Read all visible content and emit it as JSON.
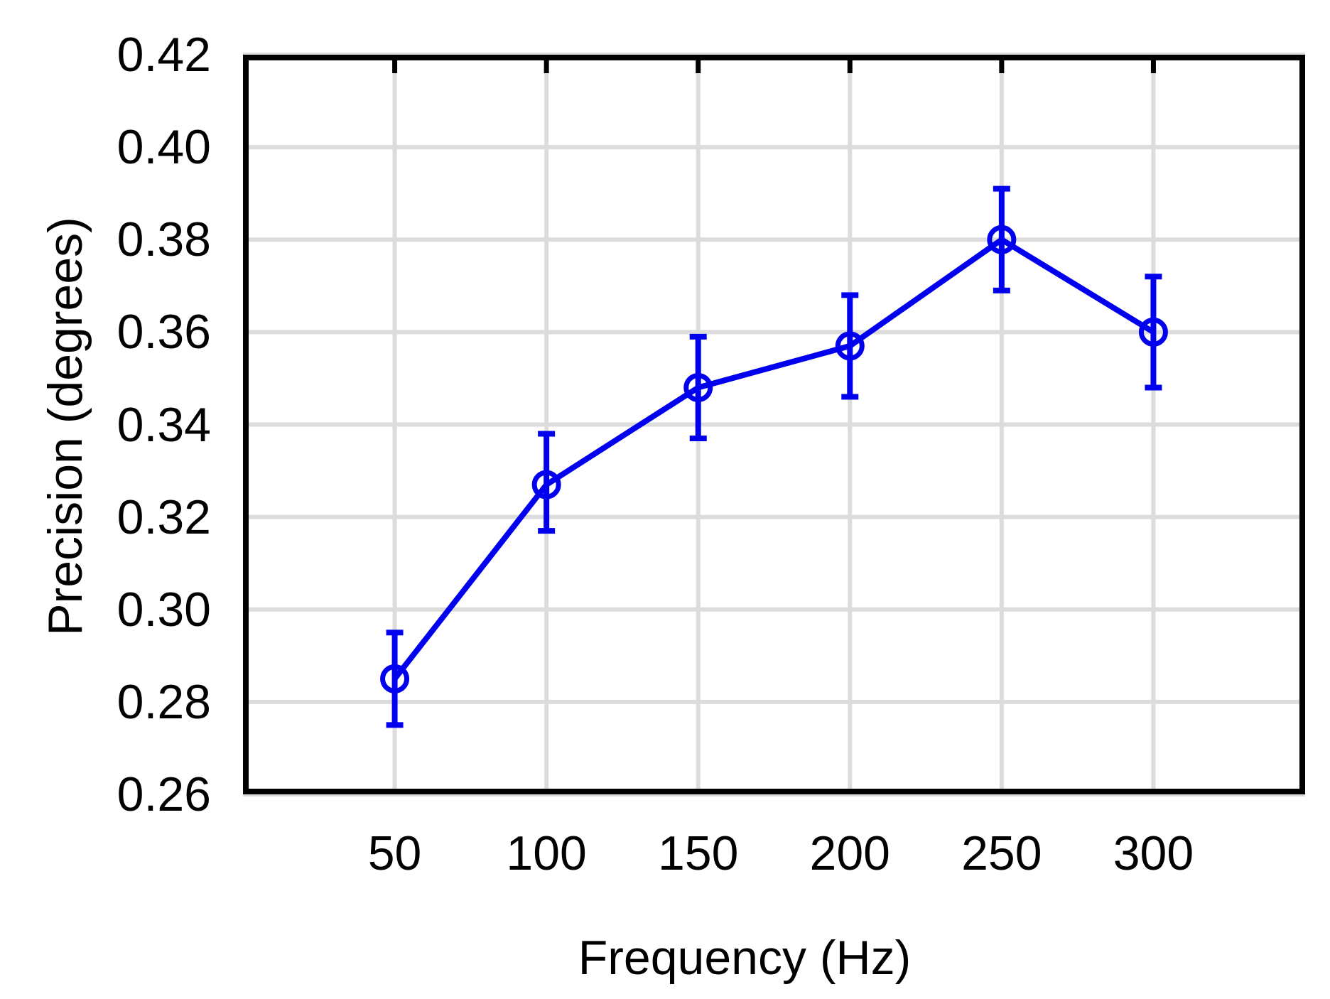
{
  "chart_data": {
    "type": "line",
    "title": "",
    "xlabel": "Frequency (Hz)",
    "ylabel": "Precision (degrees)",
    "x": [
      50,
      100,
      150,
      200,
      250,
      300
    ],
    "series": [
      {
        "name": "precision",
        "values": [
          0.285,
          0.327,
          0.348,
          0.357,
          0.38,
          0.36
        ],
        "error_upper": [
          0.01,
          0.011,
          0.011,
          0.011,
          0.011,
          0.012
        ],
        "error_lower": [
          0.01,
          0.01,
          0.011,
          0.011,
          0.011,
          0.012
        ]
      }
    ],
    "xlim": [
      0,
      350
    ],
    "ylim": [
      0.26,
      0.42
    ],
    "x_ticks": [
      50,
      100,
      150,
      200,
      250,
      300
    ],
    "x_tick_labels": [
      "50",
      "100",
      "150",
      "200",
      "250",
      "300"
    ],
    "y_ticks": [
      0.26,
      0.28,
      0.3,
      0.32,
      0.34,
      0.36,
      0.38,
      0.4,
      0.42
    ],
    "y_tick_labels": [
      "0.26",
      "0.28",
      "0.30",
      "0.32",
      "0.34",
      "0.36",
      "0.38",
      "0.40",
      "0.42"
    ],
    "grid": true,
    "legend": "none",
    "marker": "open-circle",
    "colors": {
      "line": "#0000EE",
      "grid": "#DCDCDC",
      "frame": "#000000",
      "text": "#000000",
      "background": "#FFFFFF"
    }
  }
}
